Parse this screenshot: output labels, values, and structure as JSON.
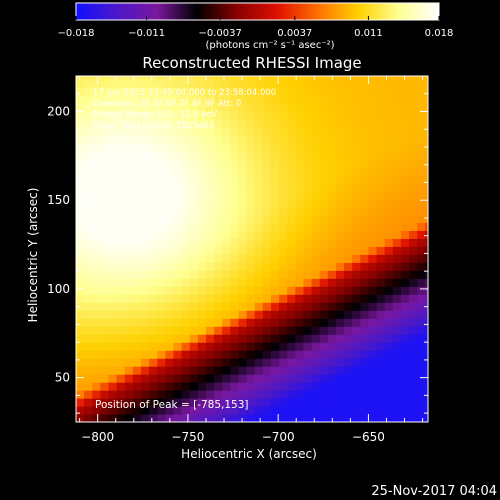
{
  "chart_data": {
    "type": "heatmap",
    "title": "Reconstructed RHESSI Image",
    "xlabel": "Heliocentric X (arcsec)",
    "ylabel": "Heliocentric Y (arcsec)",
    "xlim": [
      -812,
      -617
    ],
    "ylim": [
      25,
      220
    ],
    "xticks": [
      -800,
      -750,
      -700,
      -650
    ],
    "yticks": [
      50,
      100,
      150,
      200
    ],
    "colorbar": {
      "range": [
        -0.018,
        0.018
      ],
      "ticks": [
        -0.018,
        -0.011,
        -0.0037,
        0.0037,
        0.011,
        0.018
      ],
      "tick_labels": [
        "−0.018",
        "−0.011",
        "−0.0037",
        "0.0037",
        "0.011",
        "0.018"
      ],
      "units_label": "(photons cm⁻² s⁻¹ asec⁻²)",
      "colormap": [
        "#1010ff",
        "#4a18c8",
        "#7a18a0",
        "#000000",
        "#8a0000",
        "#e01000",
        "#ff7000",
        "#ffd000",
        "#ffff90",
        "#ffffff"
      ]
    },
    "annotations": [
      "17-Jun-2015 23:49:04.000 to 23:58:04.000",
      "Detectors: 3F 5F 6F 7F 8F 9F Att: 0",
      "Energy Range: 6.0 - 12.0 keV",
      "Clean   Total counts: 5815e04"
    ],
    "peak_label": "Position of Peak = [-785,153]",
    "peak": [
      -785,
      153
    ],
    "ridge_line": {
      "x": [
        -812,
        -617
      ],
      "y": [
        32,
        130
      ]
    },
    "grid": false
  },
  "footer": {
    "date": "25-Nov-2017 04:04"
  }
}
